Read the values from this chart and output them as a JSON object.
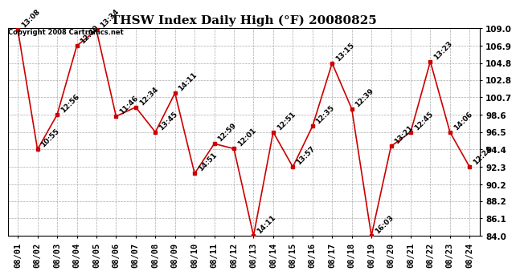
{
  "title": "THSW Index Daily High (°F) 20080825",
  "copyright": "Copyright 2008 Cartronics.net",
  "dates": [
    "08/01",
    "08/02",
    "08/03",
    "08/04",
    "08/05",
    "08/06",
    "08/07",
    "08/08",
    "08/09",
    "08/10",
    "08/11",
    "08/12",
    "08/13",
    "08/14",
    "08/15",
    "08/16",
    "08/17",
    "08/18",
    "08/19",
    "08/20",
    "08/21",
    "08/22",
    "08/23",
    "08/24"
  ],
  "values": [
    108.8,
    94.4,
    98.6,
    106.9,
    108.8,
    98.4,
    99.5,
    96.5,
    101.2,
    91.5,
    95.1,
    94.5,
    84.0,
    96.5,
    92.3,
    97.2,
    104.8,
    99.3,
    84.0,
    94.8,
    96.5,
    105.0,
    96.5,
    92.3
  ],
  "labels": [
    "13:08",
    "10:55",
    "12:56",
    "12:30",
    "13:34",
    "11:46",
    "12:34",
    "13:45",
    "14:11",
    "14:51",
    "12:59",
    "12:01",
    "14:11",
    "12:51",
    "13:57",
    "12:35",
    "13:15",
    "12:39",
    "16:03",
    "13:21",
    "12:45",
    "13:23",
    "14:06",
    "12:24"
  ],
  "line_color": "#cc0000",
  "marker_color": "#cc0000",
  "bg_color": "#ffffff",
  "grid_color": "#aaaaaa",
  "ylim_min": 84.0,
  "ylim_max": 109.0,
  "yticks": [
    84.0,
    86.1,
    88.2,
    90.2,
    92.3,
    94.4,
    96.5,
    98.6,
    100.7,
    102.8,
    104.8,
    106.9,
    109.0
  ],
  "title_fontsize": 11,
  "label_fontsize": 6.5,
  "tick_fontsize": 7.5,
  "copyright_fontsize": 6
}
